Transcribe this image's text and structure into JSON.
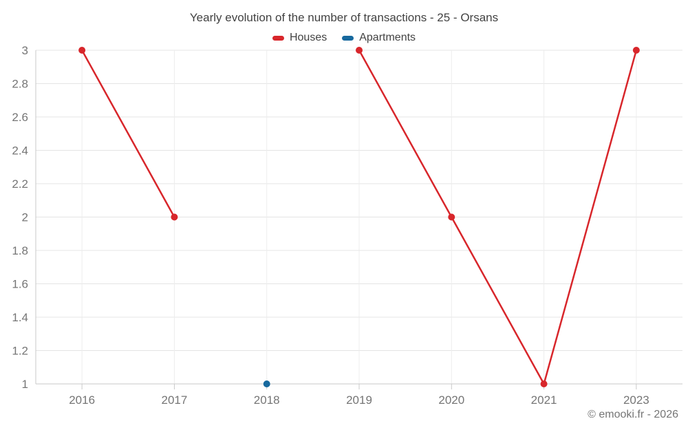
{
  "title": "Yearly evolution of the number of transactions - 25 - Orsans",
  "footer": "© emooki.fr - 2026",
  "colors": {
    "houses": "#d8262b",
    "apartments": "#17699e",
    "title_text": "#424242",
    "axis_text": "#757575",
    "grid_horizontal": "#e4e4e4",
    "grid_vertical": "#ededed",
    "axis_line": "#c9c9c9",
    "background": "#ffffff"
  },
  "legend": {
    "items": [
      {
        "label": "Houses",
        "color": "#d8262b"
      },
      {
        "label": "Apartments",
        "color": "#17699e"
      }
    ]
  },
  "chart_data": {
    "type": "line",
    "title": "Yearly evolution of the number of transactions - 25 - Orsans",
    "categories": [
      "2016",
      "2017",
      "2018",
      "2019",
      "2020",
      "2021",
      "2023"
    ],
    "series": [
      {
        "name": "Houses",
        "color": "#d8262b",
        "values": [
          3,
          2,
          null,
          3,
          2,
          1,
          3
        ]
      },
      {
        "name": "Apartments",
        "color": "#17699e",
        "values": [
          null,
          null,
          1,
          null,
          null,
          null,
          null
        ]
      }
    ],
    "xlabel": "",
    "ylabel": "",
    "ylim": [
      1,
      3
    ],
    "yticks": [
      1,
      1.2,
      1.4,
      1.6,
      1.8,
      2,
      2.2,
      2.4,
      2.6,
      2.8,
      3
    ],
    "grid": true,
    "legend_position": "top",
    "line_gaps": "Houses series has no value for 2018; line is broken between 2017 and 2019"
  }
}
